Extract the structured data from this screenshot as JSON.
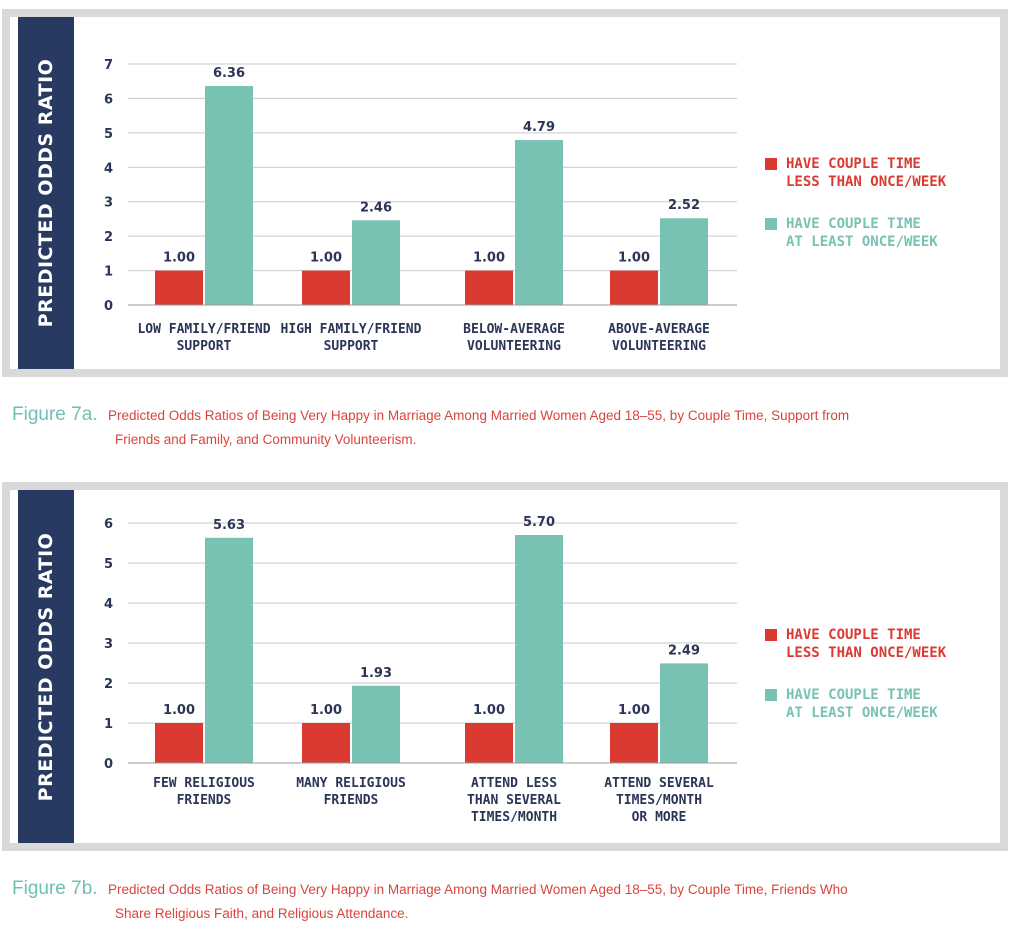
{
  "colors": {
    "red": "#db3a33",
    "teal": "#78c2b4",
    "navy": "#283a62",
    "axis_text": "#2b3657"
  },
  "chart_data": [
    {
      "type": "bar",
      "ylabel": "PREDICTED ODDS RATIO",
      "ylim": [
        0,
        7
      ],
      "yticks": [
        0,
        1,
        2,
        3,
        4,
        5,
        6,
        7
      ],
      "categories": [
        "LOW FAMILY/FRIEND\nSUPPORT",
        "HIGH FAMILY/FRIEND\nSUPPORT",
        "BELOW-AVERAGE\nVOLUNTEERING",
        "ABOVE-AVERAGE\nVOLUNTEERING"
      ],
      "series": [
        {
          "name": "HAVE COUPLE TIME\nLESS THAN ONCE/WEEK",
          "color": "#db3a33",
          "values": [
            1.0,
            1.0,
            1.0,
            1.0
          ],
          "labels": [
            "1.00",
            "1.00",
            "1.00",
            "1.00"
          ]
        },
        {
          "name": "HAVE COUPLE TIME\nAT LEAST ONCE/WEEK",
          "color": "#78c2b4",
          "values": [
            6.36,
            2.46,
            4.79,
            2.52
          ],
          "labels": [
            "6.36",
            "2.46",
            "4.79",
            "2.52"
          ]
        }
      ],
      "grid": true,
      "legend": "right"
    },
    {
      "type": "bar",
      "ylabel": "PREDICTED ODDS RATIO",
      "ylim": [
        0,
        6
      ],
      "yticks": [
        0,
        1,
        2,
        3,
        4,
        5,
        6
      ],
      "categories": [
        "FEW RELIGIOUS\nFRIENDS",
        "MANY RELIGIOUS\nFRIENDS",
        "ATTEND LESS\nTHAN SEVERAL\nTIMES/MONTH",
        "ATTEND SEVERAL\nTIMES/MONTH\nOR MORE"
      ],
      "series": [
        {
          "name": "HAVE COUPLE TIME\nLESS THAN ONCE/WEEK",
          "color": "#db3a33",
          "values": [
            1.0,
            1.0,
            1.0,
            1.0
          ],
          "labels": [
            "1.00",
            "1.00",
            "1.00",
            "1.00"
          ]
        },
        {
          "name": "HAVE COUPLE TIME\nAT LEAST ONCE/WEEK",
          "color": "#78c2b4",
          "values": [
            5.63,
            1.93,
            5.7,
            2.49
          ],
          "labels": [
            "5.63",
            "1.93",
            "5.70",
            "2.49"
          ]
        }
      ],
      "grid": true,
      "legend": "right"
    }
  ],
  "captions": [
    {
      "figure": "Figure 7a.",
      "line1": "Predicted Odds Ratios of Being Very Happy in Marriage Among Married Women Aged 18–55, by Couple Time, Support from",
      "line2": "Friends and Family, and Community Volunteerism."
    },
    {
      "figure": "Figure 7b.",
      "line1": "Predicted Odds Ratios of Being Very Happy in Marriage Among Married Women Aged 18–55, by Couple Time, Friends Who",
      "line2": "Share Religious Faith, and Religious Attendance."
    }
  ]
}
